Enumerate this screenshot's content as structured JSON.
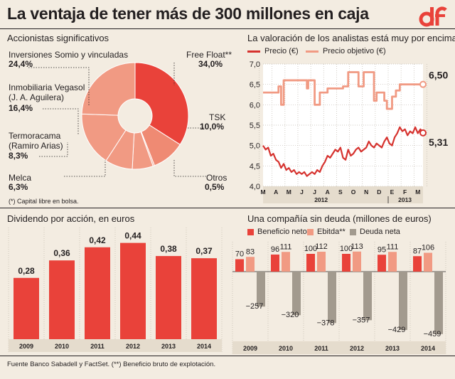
{
  "header": {
    "title": "La ventaja de tener más de 300 millones en caja",
    "logo_text": "df"
  },
  "footer": {
    "source": "Fuente Banco Sabadell y FactSet. (**) Beneficio bruto de explotación."
  },
  "chart_data": [
    {
      "type": "pie",
      "title": "Accionistas significativos",
      "note": "(*) Capital libre en bolsa.",
      "slices": [
        {
          "label": "Free Float**",
          "value_text": "34,0%",
          "value": 34.0,
          "color": "#e9423a"
        },
        {
          "label": "TSK",
          "value_text": "10,0%",
          "value": 10.0,
          "color": "#ef8a73"
        },
        {
          "label": "Otros",
          "value_text": "0,5%",
          "value": 0.5,
          "color": "#f4b5a2"
        },
        {
          "label": "Melca",
          "value_text": "6,3%",
          "value": 6.3,
          "color": "#f19a83"
        },
        {
          "label": "Termoracama\n(Ramiro Arias)",
          "value_text": "8,3%",
          "value": 8.3,
          "color": "#f19a83"
        },
        {
          "label": "Inmobiliaria Vegasol\n(J. A. Aguilera)",
          "value_text": "16,4%",
          "value": 16.4,
          "color": "#f19a83"
        },
        {
          "label": "Inversiones Somio y vinculadas",
          "value_text": "24,4%",
          "value": 24.4,
          "color": "#f19a83"
        }
      ]
    },
    {
      "type": "line",
      "title": "La valoración de los analistas está muy por encima",
      "ylim": [
        4.0,
        7.0
      ],
      "yticks": [
        "4,0",
        "4,5",
        "5,0",
        "5,5",
        "6,0",
        "6,5",
        "7,0"
      ],
      "x_months": [
        "M",
        "A",
        "M",
        "J",
        "J",
        "A",
        "S",
        "O",
        "N",
        "D",
        "E",
        "F",
        "M"
      ],
      "x_years": [
        "2012",
        "2013"
      ],
      "series": [
        {
          "name": "Precio (€)",
          "color": "#d6322e",
          "end_label": "5,31",
          "points": [
            [
              0,
              5.0
            ],
            [
              0.2,
              4.9
            ],
            [
              0.4,
              4.95
            ],
            [
              0.6,
              4.75
            ],
            [
              0.8,
              4.8
            ],
            [
              1.0,
              4.65
            ],
            [
              1.2,
              4.6
            ],
            [
              1.4,
              4.45
            ],
            [
              1.6,
              4.55
            ],
            [
              1.8,
              4.4
            ],
            [
              2.0,
              4.45
            ],
            [
              2.2,
              4.35
            ],
            [
              2.4,
              4.4
            ],
            [
              2.6,
              4.3
            ],
            [
              2.8,
              4.35
            ],
            [
              3.0,
              4.3
            ],
            [
              3.2,
              4.35
            ],
            [
              3.4,
              4.25
            ],
            [
              3.6,
              4.3
            ],
            [
              3.8,
              4.35
            ],
            [
              4.0,
              4.3
            ],
            [
              4.2,
              4.4
            ],
            [
              4.4,
              4.35
            ],
            [
              4.6,
              4.5
            ],
            [
              4.8,
              4.6
            ],
            [
              5.0,
              4.75
            ],
            [
              5.2,
              4.7
            ],
            [
              5.4,
              4.8
            ],
            [
              5.6,
              4.9
            ],
            [
              5.8,
              4.85
            ],
            [
              6.0,
              4.95
            ],
            [
              6.2,
              4.7
            ],
            [
              6.4,
              4.65
            ],
            [
              6.6,
              4.9
            ],
            [
              6.8,
              4.75
            ],
            [
              7.0,
              4.8
            ],
            [
              7.2,
              4.9
            ],
            [
              7.4,
              4.95
            ],
            [
              7.6,
              4.85
            ],
            [
              7.8,
              4.9
            ],
            [
              8.0,
              4.95
            ],
            [
              8.2,
              5.1
            ],
            [
              8.4,
              5.0
            ],
            [
              8.6,
              4.95
            ],
            [
              8.8,
              5.05
            ],
            [
              9.0,
              5.0
            ],
            [
              9.2,
              4.95
            ],
            [
              9.4,
              5.1
            ],
            [
              9.6,
              5.2
            ],
            [
              9.8,
              5.05
            ],
            [
              10.0,
              5.0
            ],
            [
              10.2,
              5.2
            ],
            [
              10.4,
              5.3
            ],
            [
              10.6,
              5.45
            ],
            [
              10.8,
              5.35
            ],
            [
              11.0,
              5.4
            ],
            [
              11.2,
              5.25
            ],
            [
              11.4,
              5.35
            ],
            [
              11.6,
              5.3
            ],
            [
              11.8,
              5.45
            ],
            [
              12.0,
              5.3
            ],
            [
              12.2,
              5.4
            ],
            [
              12.4,
              5.31
            ]
          ]
        },
        {
          "name": "Precio objetivo (€)",
          "color": "#f19a83",
          "end_label": "6,50",
          "points": [
            [
              0,
              6.3
            ],
            [
              1.2,
              6.3
            ],
            [
              1.2,
              6.45
            ],
            [
              1.4,
              6.45
            ],
            [
              1.4,
              6.0
            ],
            [
              1.6,
              6.0
            ],
            [
              1.6,
              6.6
            ],
            [
              3.4,
              6.6
            ],
            [
              3.4,
              6.4
            ],
            [
              3.5,
              6.4
            ],
            [
              3.5,
              6.6
            ],
            [
              4.0,
              6.6
            ],
            [
              4.0,
              6.0
            ],
            [
              4.4,
              6.0
            ],
            [
              4.4,
              6.3
            ],
            [
              5.0,
              6.3
            ],
            [
              5.0,
              6.4
            ],
            [
              6.2,
              6.4
            ],
            [
              6.2,
              6.45
            ],
            [
              6.6,
              6.45
            ],
            [
              6.6,
              6.8
            ],
            [
              7.4,
              6.8
            ],
            [
              7.4,
              6.45
            ],
            [
              7.8,
              6.45
            ],
            [
              7.8,
              6.8
            ],
            [
              8.6,
              6.8
            ],
            [
              8.6,
              6.1
            ],
            [
              8.8,
              6.1
            ],
            [
              8.8,
              6.3
            ],
            [
              9.4,
              6.3
            ],
            [
              9.4,
              6.1
            ],
            [
              9.6,
              6.1
            ],
            [
              9.6,
              5.9
            ],
            [
              10.0,
              5.9
            ],
            [
              10.0,
              6.2
            ],
            [
              10.3,
              6.2
            ],
            [
              10.3,
              6.35
            ],
            [
              10.6,
              6.35
            ],
            [
              10.6,
              6.5
            ],
            [
              12.4,
              6.5
            ]
          ]
        }
      ]
    },
    {
      "type": "bar",
      "title": "Dividendo por acción, en euros",
      "categories": [
        "2009",
        "2010",
        "2011",
        "2012",
        "2013",
        "2014"
      ],
      "values": [
        0.28,
        0.36,
        0.42,
        0.44,
        0.38,
        0.37
      ],
      "value_labels": [
        "0,28",
        "0,36",
        "0,42",
        "0,44",
        "0,38",
        "0,37"
      ],
      "ylim": [
        0,
        0.5
      ],
      "color": "#e9423a"
    },
    {
      "type": "bar",
      "title": "Una compañía sin deuda (millones de euros)",
      "categories": [
        "2009",
        "2010",
        "2011",
        "2012",
        "2013",
        "2014"
      ],
      "ylim": [
        -500,
        150
      ],
      "series": [
        {
          "name": "Beneficio neto",
          "color": "#e9423a",
          "values": [
            70,
            96,
            100,
            100,
            95,
            87
          ]
        },
        {
          "name": "Ebitda**",
          "color": "#f19a83",
          "values": [
            83,
            111,
            112,
            113,
            111,
            106
          ]
        },
        {
          "name": "Deuda neta",
          "color": "#a29a8e",
          "values": [
            -257,
            -320,
            -378,
            -357,
            -429,
            -459
          ]
        }
      ],
      "value_labels": [
        [
          "70",
          "96",
          "100",
          "100",
          "95",
          "87"
        ],
        [
          "83",
          "111",
          "112",
          "113",
          "111",
          "106"
        ],
        [
          "−257",
          "−320",
          "−378",
          "−357",
          "−429",
          "−459"
        ]
      ]
    }
  ]
}
